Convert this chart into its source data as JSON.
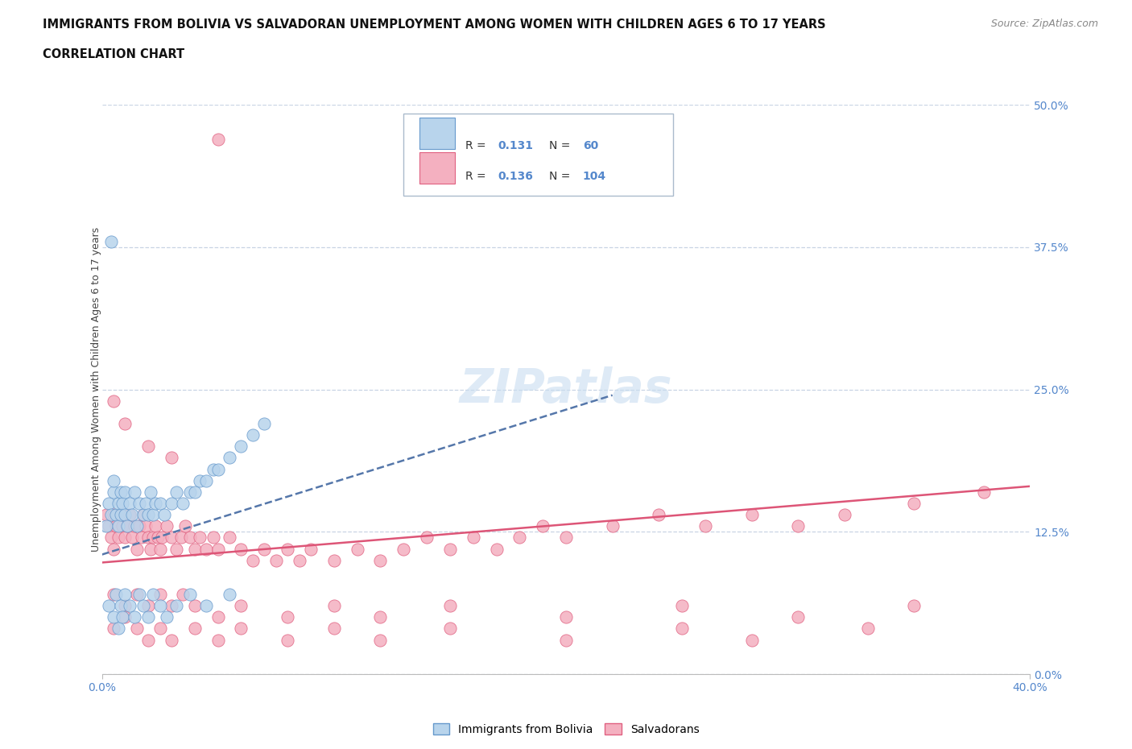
{
  "title_line1": "IMMIGRANTS FROM BOLIVIA VS SALVADORAN UNEMPLOYMENT AMONG WOMEN WITH CHILDREN AGES 6 TO 17 YEARS",
  "title_line2": "CORRELATION CHART",
  "source_text": "Source: ZipAtlas.com",
  "ylabel": "Unemployment Among Women with Children Ages 6 to 17 years",
  "xmin": 0.0,
  "xmax": 0.4,
  "ymin": 0.0,
  "ymax": 0.5,
  "yticks": [
    0.0,
    0.125,
    0.25,
    0.375,
    0.5
  ],
  "ytick_labels": [
    "0.0%",
    "12.5%",
    "25.0%",
    "37.5%",
    "50.0%"
  ],
  "xtick_labels": [
    "0.0%",
    "40.0%"
  ],
  "bolivia_R": 0.131,
  "bolivia_N": 60,
  "salvador_R": 0.136,
  "salvador_N": 104,
  "bolivia_fill": "#b8d4ec",
  "bolivia_edge": "#6699cc",
  "salvador_fill": "#f4b0c0",
  "salvador_edge": "#e06080",
  "bolivia_line_color": "#5577aa",
  "salvador_line_color": "#dd5577",
  "grid_color": "#c8d4e4",
  "background_color": "#ffffff",
  "bolivia_x": [
    0.002,
    0.003,
    0.004,
    0.005,
    0.005,
    0.006,
    0.007,
    0.007,
    0.008,
    0.008,
    0.009,
    0.01,
    0.01,
    0.011,
    0.012,
    0.013,
    0.014,
    0.015,
    0.016,
    0.018,
    0.019,
    0.02,
    0.021,
    0.022,
    0.023,
    0.025,
    0.027,
    0.03,
    0.032,
    0.035,
    0.038,
    0.04,
    0.042,
    0.045,
    0.048,
    0.05,
    0.055,
    0.06,
    0.065,
    0.07,
    0.003,
    0.005,
    0.006,
    0.007,
    0.008,
    0.009,
    0.01,
    0.012,
    0.014,
    0.016,
    0.018,
    0.02,
    0.022,
    0.025,
    0.028,
    0.032,
    0.038,
    0.045,
    0.055,
    0.004
  ],
  "bolivia_y": [
    0.13,
    0.15,
    0.14,
    0.16,
    0.17,
    0.14,
    0.15,
    0.13,
    0.14,
    0.16,
    0.15,
    0.14,
    0.16,
    0.13,
    0.15,
    0.14,
    0.16,
    0.13,
    0.15,
    0.14,
    0.15,
    0.14,
    0.16,
    0.14,
    0.15,
    0.15,
    0.14,
    0.15,
    0.16,
    0.15,
    0.16,
    0.16,
    0.17,
    0.17,
    0.18,
    0.18,
    0.19,
    0.2,
    0.21,
    0.22,
    0.06,
    0.05,
    0.07,
    0.04,
    0.06,
    0.05,
    0.07,
    0.06,
    0.05,
    0.07,
    0.06,
    0.05,
    0.07,
    0.06,
    0.05,
    0.06,
    0.07,
    0.06,
    0.07,
    0.38
  ],
  "salvador_x": [
    0.002,
    0.003,
    0.004,
    0.005,
    0.005,
    0.006,
    0.007,
    0.008,
    0.009,
    0.01,
    0.011,
    0.012,
    0.013,
    0.014,
    0.015,
    0.016,
    0.017,
    0.018,
    0.019,
    0.02,
    0.021,
    0.022,
    0.023,
    0.024,
    0.025,
    0.026,
    0.028,
    0.03,
    0.032,
    0.034,
    0.036,
    0.038,
    0.04,
    0.042,
    0.045,
    0.048,
    0.05,
    0.055,
    0.06,
    0.065,
    0.07,
    0.075,
    0.08,
    0.085,
    0.09,
    0.1,
    0.11,
    0.12,
    0.13,
    0.14,
    0.15,
    0.16,
    0.17,
    0.18,
    0.19,
    0.2,
    0.22,
    0.24,
    0.26,
    0.28,
    0.3,
    0.32,
    0.35,
    0.38,
    0.005,
    0.01,
    0.015,
    0.02,
    0.025,
    0.03,
    0.035,
    0.04,
    0.05,
    0.06,
    0.08,
    0.1,
    0.12,
    0.15,
    0.2,
    0.25,
    0.3,
    0.35,
    0.005,
    0.01,
    0.015,
    0.02,
    0.025,
    0.03,
    0.04,
    0.05,
    0.06,
    0.08,
    0.1,
    0.12,
    0.15,
    0.2,
    0.25,
    0.28,
    0.33,
    0.005,
    0.01,
    0.02,
    0.03,
    0.05
  ],
  "salvador_y": [
    0.14,
    0.13,
    0.12,
    0.14,
    0.11,
    0.13,
    0.12,
    0.14,
    0.13,
    0.12,
    0.13,
    0.14,
    0.12,
    0.13,
    0.11,
    0.13,
    0.12,
    0.14,
    0.13,
    0.12,
    0.11,
    0.12,
    0.13,
    0.12,
    0.11,
    0.12,
    0.13,
    0.12,
    0.11,
    0.12,
    0.13,
    0.12,
    0.11,
    0.12,
    0.11,
    0.12,
    0.11,
    0.12,
    0.11,
    0.1,
    0.11,
    0.1,
    0.11,
    0.1,
    0.11,
    0.1,
    0.11,
    0.1,
    0.11,
    0.12,
    0.11,
    0.12,
    0.11,
    0.12,
    0.13,
    0.12,
    0.13,
    0.14,
    0.13,
    0.14,
    0.13,
    0.14,
    0.15,
    0.16,
    0.07,
    0.06,
    0.07,
    0.06,
    0.07,
    0.06,
    0.07,
    0.06,
    0.05,
    0.06,
    0.05,
    0.06,
    0.05,
    0.06,
    0.05,
    0.06,
    0.05,
    0.06,
    0.04,
    0.05,
    0.04,
    0.03,
    0.04,
    0.03,
    0.04,
    0.03,
    0.04,
    0.03,
    0.04,
    0.03,
    0.04,
    0.03,
    0.04,
    0.03,
    0.04,
    0.24,
    0.22,
    0.2,
    0.19,
    0.47
  ],
  "bolivia_line_x0": 0.0,
  "bolivia_line_x1": 0.22,
  "bolivia_line_y0": 0.105,
  "bolivia_line_y1": 0.245,
  "salvador_line_x0": 0.0,
  "salvador_line_x1": 0.4,
  "salvador_line_y0": 0.098,
  "salvador_line_y1": 0.165
}
